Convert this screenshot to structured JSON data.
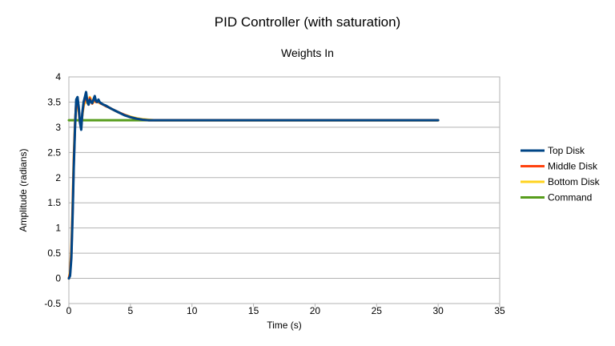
{
  "chart_data": {
    "type": "line",
    "title": "PID Controller (with saturation)",
    "subtitle": "Weights In",
    "xlabel": "Time (s)",
    "ylabel": "Amplitude (radians)",
    "xlim": [
      0,
      35
    ],
    "ylim": [
      -0.5,
      4
    ],
    "xticks": [
      "0",
      "5",
      "10",
      "15",
      "20",
      "25",
      "30",
      "35"
    ],
    "yticks": [
      "-0.5",
      "0",
      "0.5",
      "1",
      "1.5",
      "2",
      "2.5",
      "3",
      "3.5",
      "4"
    ],
    "grid": "horizontal",
    "legend_position": "right",
    "series": [
      {
        "name": "Top Disk",
        "color": "#004586",
        "x": [
          0,
          0.1,
          0.2,
          0.3,
          0.4,
          0.5,
          0.6,
          0.7,
          0.8,
          0.9,
          1.0,
          1.1,
          1.2,
          1.3,
          1.4,
          1.5,
          1.6,
          1.7,
          1.8,
          1.9,
          2.0,
          2.1,
          2.2,
          2.3,
          2.4,
          2.5,
          2.6,
          2.8,
          3.0,
          3.2,
          3.5,
          4.0,
          4.5,
          5.0,
          5.5,
          6.0,
          6.5,
          7.0,
          8.0,
          10,
          15,
          20,
          25,
          30
        ],
        "y": [
          0,
          0.05,
          0.4,
          1.2,
          2.2,
          3.0,
          3.55,
          3.6,
          3.4,
          3.1,
          2.95,
          3.3,
          3.5,
          3.6,
          3.7,
          3.5,
          3.45,
          3.55,
          3.5,
          3.48,
          3.55,
          3.62,
          3.52,
          3.5,
          3.55,
          3.5,
          3.48,
          3.45,
          3.43,
          3.4,
          3.36,
          3.3,
          3.24,
          3.2,
          3.17,
          3.15,
          3.14,
          3.14,
          3.14,
          3.14,
          3.14,
          3.14,
          3.14,
          3.14
        ]
      },
      {
        "name": "Middle Disk",
        "color": "#ff420e",
        "x": [
          0,
          0.1,
          0.2,
          0.3,
          0.4,
          0.5,
          0.6,
          0.7,
          0.8,
          0.9,
          1.0,
          1.1,
          1.2,
          1.3,
          1.4,
          1.5,
          1.6,
          1.7,
          1.8,
          1.9,
          2.0,
          2.1,
          2.2,
          2.3,
          2.4,
          2.5,
          2.6,
          2.8,
          3.0,
          3.2,
          3.5,
          4.0,
          4.5,
          5.0,
          5.5,
          6.0,
          6.5,
          7.0,
          8.0,
          10,
          15,
          20,
          25,
          30
        ],
        "y": [
          0,
          0.1,
          0.5,
          1.3,
          2.3,
          3.05,
          3.5,
          3.55,
          3.35,
          3.1,
          3.0,
          3.28,
          3.45,
          3.55,
          3.62,
          3.5,
          3.45,
          3.58,
          3.52,
          3.47,
          3.53,
          3.58,
          3.5,
          3.5,
          3.52,
          3.49,
          3.47,
          3.45,
          3.42,
          3.4,
          3.36,
          3.3,
          3.25,
          3.2,
          3.17,
          3.15,
          3.14,
          3.14,
          3.14,
          3.14,
          3.14,
          3.14,
          3.14,
          3.14
        ]
      },
      {
        "name": "Bottom Disk",
        "color": "#ffd320",
        "x": [
          0,
          0.1,
          0.2,
          0.3,
          0.4,
          0.5,
          0.6,
          0.7,
          0.8,
          0.9,
          1.0,
          1.1,
          1.2,
          1.3,
          1.4,
          1.5,
          1.6,
          1.7,
          1.8,
          1.9,
          2.0,
          2.1,
          2.2,
          2.3,
          2.4,
          2.5,
          2.6,
          2.8,
          3.0,
          3.2,
          3.5,
          4.0,
          4.5,
          5.0,
          5.5,
          6.0,
          6.5,
          7.0,
          8.0,
          10,
          15,
          20,
          25,
          30
        ],
        "y": [
          0,
          0.15,
          0.6,
          1.4,
          2.4,
          3.1,
          3.45,
          3.5,
          3.3,
          3.12,
          3.05,
          3.25,
          3.42,
          3.5,
          3.55,
          3.48,
          3.46,
          3.6,
          3.55,
          3.47,
          3.5,
          3.55,
          3.5,
          3.5,
          3.5,
          3.48,
          3.47,
          3.45,
          3.42,
          3.4,
          3.36,
          3.3,
          3.25,
          3.21,
          3.18,
          3.16,
          3.15,
          3.14,
          3.14,
          3.14,
          3.14,
          3.14,
          3.14,
          3.14
        ]
      },
      {
        "name": "Command",
        "color": "#579d1c",
        "x": [
          0,
          30
        ],
        "y": [
          3.14,
          3.14
        ]
      }
    ]
  }
}
